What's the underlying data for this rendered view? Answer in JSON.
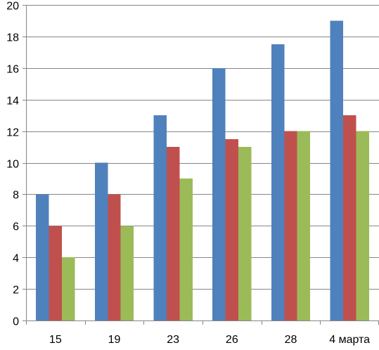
{
  "chart_data": {
    "type": "bar",
    "categories": [
      "15",
      "19",
      "23",
      "26",
      "28",
      "4 марта"
    ],
    "series": [
      {
        "values": [
          8,
          10,
          13,
          16,
          17.5,
          19
        ],
        "color": "#4F81BD"
      },
      {
        "values": [
          6,
          8,
          11,
          11.5,
          12,
          13
        ],
        "color": "#C0504D"
      },
      {
        "values": [
          4,
          6,
          9,
          11,
          12,
          12
        ],
        "color": "#9BBB59"
      }
    ],
    "ylim": [
      0,
      20
    ],
    "y_ticks": [
      0,
      2,
      4,
      6,
      8,
      10,
      12,
      14,
      16,
      18,
      20
    ],
    "grid": true,
    "legend": "none",
    "title": "",
    "xlabel": "",
    "ylabel": ""
  }
}
